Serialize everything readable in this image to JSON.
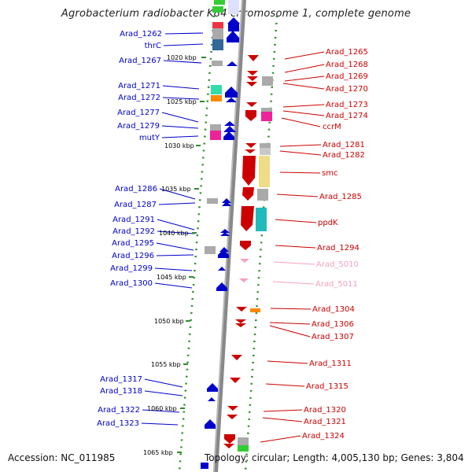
{
  "title": "Agrobacterium radiobacter K84 chromosome 1, complete genome",
  "footer": {
    "accession": "Accession: NC_011985",
    "info": "Topology: circular; Length: 4,005,130 bp; Genes: 3,804"
  },
  "colors": {
    "left_gene": "#0000cc",
    "right_gene": "#cc0000",
    "pale_gene": "#f4a0c0",
    "backbone": "#888888",
    "ruler_dots": "#2e8b2e"
  },
  "kbp_ticks": [
    "1020 kbp",
    "1025 kbp",
    "1030 kbp",
    "1035 kbp",
    "1040 kbp",
    "1045 kbp",
    "1050 kbp",
    "1055 kbp",
    "1060 kbp",
    "1065 kbp"
  ],
  "left_labels": [
    "Arad_1262",
    "thrC",
    "Arad_1267",
    "Arad_1271",
    "Arad_1272",
    "Arad_1277",
    "Arad_1279",
    "mutY",
    "Arad_1286",
    "Arad_1287",
    "Arad_1291",
    "Arad_1292",
    "Arad_1295",
    "Arad_1296",
    "Arad_1299",
    "Arad_1300",
    "Arad_1317",
    "Arad_1318",
    "Arad_1322",
    "Arad_1323"
  ],
  "right_labels": [
    "Arad_1265",
    "Arad_1268",
    "Arad_1269",
    "Arad_1270",
    "Arad_1273",
    "Arad_1274",
    "ccrM",
    "Arad_1281",
    "Arad_1282",
    "smc",
    "Arad_1285",
    "ppdK",
    "Arad_1294",
    "Arad_5010",
    "Arad_5011",
    "Arad_1304",
    "Arad_1306",
    "Arad_1307",
    "Arad_1311",
    "Arad_1315",
    "Arad_1320",
    "Arad_1321",
    "Arad_1324"
  ],
  "pale_labels": [
    "Arad_5010",
    "Arad_5011"
  ]
}
